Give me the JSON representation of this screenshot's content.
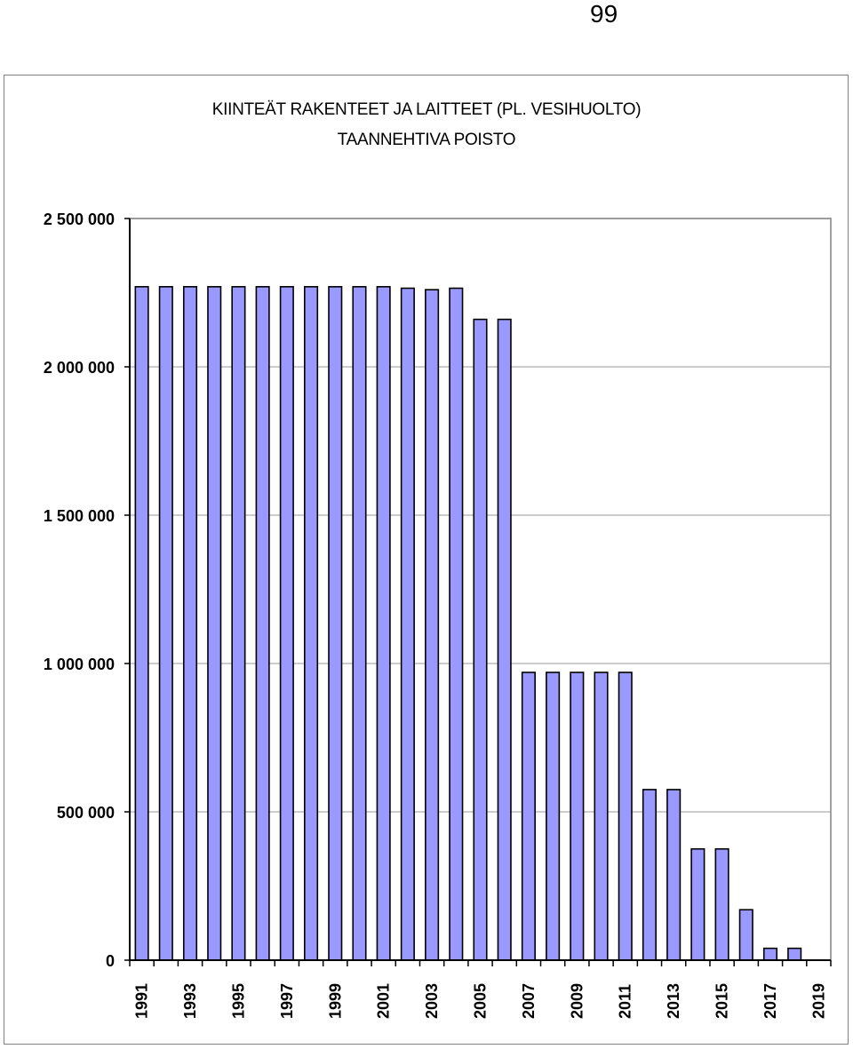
{
  "page": {
    "number": "99"
  },
  "chart_data": {
    "type": "bar",
    "title": "KIINTEÄT RAKENTEET JA LAITTEET (PL. VESIHUOLTO)",
    "subtitle": "TAANNEHTIVA POISTO",
    "xlabel": "",
    "ylabel": "",
    "ylim": [
      0,
      2500000
    ],
    "yticks": [
      0,
      500000,
      1000000,
      1500000,
      2000000,
      2500000
    ],
    "ytick_labels": [
      "0",
      "500 000",
      "1 000 000",
      "1 500 000",
      "2 000 000",
      "2 500 000"
    ],
    "grid": true,
    "bar_color": "#9999ff",
    "categories": [
      "1991",
      "1992",
      "1993",
      "1994",
      "1995",
      "1996",
      "1997",
      "1998",
      "1999",
      "2000",
      "2001",
      "2002",
      "2003",
      "2004",
      "2005",
      "2006",
      "2007",
      "2008",
      "2009",
      "2010",
      "2011",
      "2012",
      "2013",
      "2014",
      "2015",
      "2016",
      "2017",
      "2018",
      "2019"
    ],
    "xtick_labels": [
      "1991",
      "1993",
      "1995",
      "1997",
      "1999",
      "2001",
      "2003",
      "2005",
      "2007",
      "2009",
      "2011",
      "2013",
      "2015",
      "2017",
      "2019"
    ],
    "values": [
      2270000,
      2270000,
      2270000,
      2270000,
      2270000,
      2270000,
      2270000,
      2270000,
      2270000,
      2270000,
      2270000,
      2265000,
      2260000,
      2265000,
      2160000,
      2160000,
      970000,
      970000,
      970000,
      970000,
      970000,
      575000,
      575000,
      375000,
      375000,
      170000,
      40000,
      40000,
      0
    ]
  }
}
